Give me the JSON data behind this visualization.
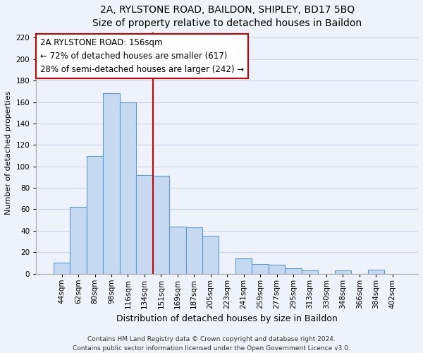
{
  "title1": "2A, RYLSTONE ROAD, BAILDON, SHIPLEY, BD17 5BQ",
  "title2": "Size of property relative to detached houses in Baildon",
  "xlabel": "Distribution of detached houses by size in Baildon",
  "ylabel": "Number of detached properties",
  "bar_labels": [
    "44sqm",
    "62sqm",
    "80sqm",
    "98sqm",
    "116sqm",
    "134sqm",
    "151sqm",
    "169sqm",
    "187sqm",
    "205sqm",
    "223sqm",
    "241sqm",
    "259sqm",
    "277sqm",
    "295sqm",
    "313sqm",
    "330sqm",
    "348sqm",
    "366sqm",
    "384sqm",
    "402sqm"
  ],
  "bar_values": [
    10,
    62,
    110,
    168,
    160,
    92,
    91,
    44,
    43,
    35,
    0,
    14,
    9,
    8,
    5,
    3,
    0,
    3,
    0,
    4,
    0
  ],
  "bar_color": "#c6d9f0",
  "bar_edge_color": "#5b9bd5",
  "vline_color": "#cc0000",
  "vline_x": 5.5,
  "annotation_line1": "2A RYLSTONE ROAD: 156sqm",
  "annotation_line2": "← 72% of detached houses are smaller (617)",
  "annotation_line3": "28% of semi-detached houses are larger (242) →",
  "ylim": [
    0,
    225
  ],
  "yticks": [
    0,
    20,
    40,
    60,
    80,
    100,
    120,
    140,
    160,
    180,
    200,
    220
  ],
  "footer1": "Contains HM Land Registry data © Crown copyright and database right 2024.",
  "footer2": "Contains public sector information licensed under the Open Government Licence v3.0.",
  "bg_color": "#eef2fa",
  "grid_color": "#c8d4e8",
  "title1_fontsize": 10,
  "title2_fontsize": 9.5,
  "xlabel_fontsize": 9,
  "ylabel_fontsize": 8,
  "tick_fontsize": 7.5,
  "footer_fontsize": 6.5,
  "ann_fontsize": 8.5,
  "ann_box_edgecolor": "#cc0000",
  "ann_box_facecolor": "#ffffff"
}
